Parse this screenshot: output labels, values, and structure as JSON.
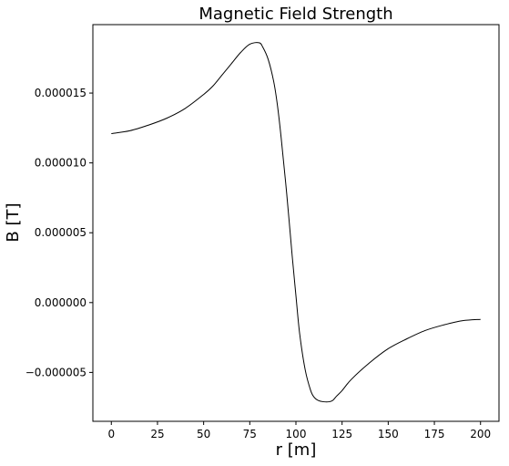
{
  "chart_data": {
    "type": "line",
    "title": "Magnetic Field Strength",
    "xlabel": "r [m]",
    "ylabel": "B [T]",
    "xlim": [
      -10,
      210
    ],
    "ylim": [
      -8.5e-06,
      1.99e-05
    ],
    "xticks": [
      0,
      25,
      50,
      75,
      100,
      125,
      150,
      175,
      200
    ],
    "xtick_labels": [
      "0",
      "25",
      "50",
      "75",
      "100",
      "125",
      "150",
      "175",
      "200"
    ],
    "yticks": [
      -5e-06,
      0,
      5e-06,
      1e-05,
      1.5e-05
    ],
    "ytick_labels": [
      "−0.000005",
      "0.000000",
      "0.000005",
      "0.000010",
      "0.000015"
    ],
    "grid": false,
    "colors": {
      "line": "#000000",
      "axes": "#000000",
      "background": "#ffffff"
    },
    "series": [
      {
        "x": [
          0,
          10,
          20,
          30,
          40,
          50,
          55,
          60,
          65,
          70,
          75,
          80,
          82,
          85,
          88,
          90,
          92,
          95,
          98,
          100,
          102,
          105,
          108,
          110,
          112,
          115,
          118,
          120,
          122,
          125,
          130,
          140,
          150,
          160,
          170,
          180,
          190,
          200
        ],
        "y": [
          1.21e-05,
          1.23e-05,
          1.27e-05,
          1.32e-05,
          1.39e-05,
          1.49e-05,
          1.55e-05,
          1.63e-05,
          1.71e-05,
          1.79e-05,
          1.85e-05,
          1.86e-05,
          1.83e-05,
          1.74e-05,
          1.58e-05,
          1.41e-05,
          1.18e-05,
          7.8e-06,
          3.3e-06,
          5e-07,
          -2.2e-06,
          -4.8e-06,
          -6.3e-06,
          -6.8e-06,
          -7e-06,
          -7.1e-06,
          -7.1e-06,
          -7e-06,
          -6.7e-06,
          -6.3e-06,
          -5.5e-06,
          -4.3e-06,
          -3.3e-06,
          -2.6e-06,
          -2e-06,
          -1.6e-06,
          -1.3e-06,
          -1.2e-06
        ]
      }
    ]
  }
}
